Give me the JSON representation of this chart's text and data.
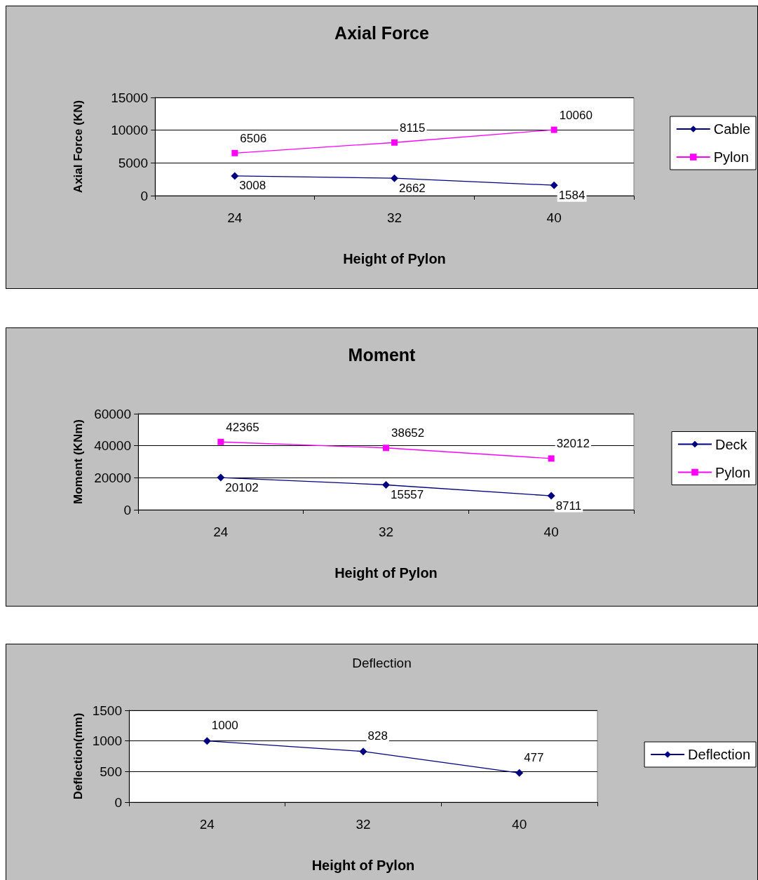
{
  "chart_data": [
    {
      "type": "line",
      "title": "Axial Force",
      "xlabel": "Height of Pylon",
      "ylabel": "Axial Force (KN)",
      "categories": [
        "24",
        "32",
        "40"
      ],
      "series": [
        {
          "name": "Cable",
          "color": "#000080",
          "marker": "diamond",
          "values": [
            3008,
            2662,
            1584
          ]
        },
        {
          "name": "Pylon",
          "color": "#ff00ff",
          "marker": "square",
          "values": [
            6506,
            8115,
            10060
          ]
        }
      ],
      "ylim": [
        0,
        15000
      ],
      "yticks": [
        0,
        5000,
        10000,
        15000
      ],
      "grid": "y",
      "legend": "right",
      "data_labels": true
    },
    {
      "type": "line",
      "title": "Moment",
      "xlabel": "Height of Pylon",
      "ylabel": "Moment (KNm)",
      "categories": [
        "24",
        "32",
        "40"
      ],
      "series": [
        {
          "name": "Deck",
          "color": "#000080",
          "marker": "diamond",
          "values": [
            20102,
            15557,
            8711
          ]
        },
        {
          "name": "Pylon",
          "color": "#ff00ff",
          "marker": "square",
          "values": [
            42365,
            38652,
            32012
          ]
        }
      ],
      "ylim": [
        0,
        60000
      ],
      "yticks": [
        0,
        20000,
        40000,
        60000
      ],
      "grid": "y",
      "legend": "right",
      "data_labels": true
    },
    {
      "type": "line",
      "title": "Deflection",
      "xlabel": "Height of Pylon",
      "ylabel": "Deflection(mm)",
      "categories": [
        "24",
        "32",
        "40"
      ],
      "series": [
        {
          "name": "Deflection",
          "color": "#000080",
          "marker": "diamond",
          "values": [
            1000,
            828,
            477
          ]
        }
      ],
      "ylim": [
        0,
        1500
      ],
      "yticks": [
        0,
        500,
        1000,
        1500
      ],
      "grid": "y",
      "legend": "right",
      "data_labels": true
    }
  ]
}
